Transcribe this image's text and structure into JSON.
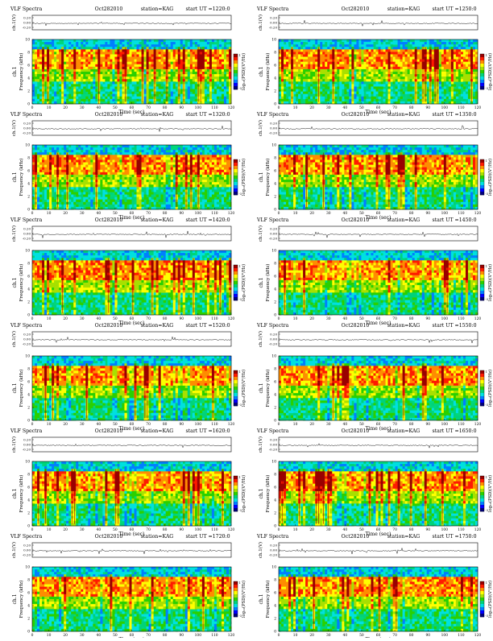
{
  "chart_data": [
    {
      "type": "heatmap",
      "title": "VLF Spectra",
      "date": "Oct282010",
      "station": "station=KAG",
      "start": "start  UT  =1220:0",
      "top_ylabel": "ch.1(V)",
      "top_ticks": [
        "0.20",
        "0.00",
        "-0.20"
      ],
      "ylabel": "Frequency  (kHz)",
      "ylabel_side": "ch.1",
      "xlabel": "Time  (sec)",
      "xticks": [
        0,
        10,
        20,
        30,
        40,
        50,
        60,
        70,
        80,
        90,
        100,
        110,
        120
      ],
      "yticks": [
        0,
        2,
        4,
        6,
        8,
        10
      ],
      "xlim": [
        0,
        120
      ],
      "ylim": [
        0,
        10
      ],
      "colorbar_label": "log₁₀(PSD)(V²/Hz)",
      "colorbar_ticks": [
        "1",
        "-3"
      ]
    },
    {
      "type": "heatmap",
      "title": "VLF Spectra",
      "date": "Oct282010",
      "station": "station=KAG",
      "start": "start  UT  =1250:0",
      "top_ylabel": "ch.1(V)",
      "top_ticks": [
        "0.20",
        "0.00",
        "-0.20"
      ],
      "ylabel": "Frequency  (kHz)",
      "ylabel_side": "ch.1",
      "xlabel": "Time  (sec)",
      "xticks": [
        0,
        10,
        20,
        30,
        40,
        50,
        60,
        70,
        80,
        90,
        100,
        110,
        120
      ],
      "yticks": [
        0,
        2,
        4,
        6,
        8,
        10
      ],
      "xlim": [
        0,
        120
      ],
      "ylim": [
        0,
        10
      ],
      "colorbar_label": "log₁₀(PSD)(V²/Hz)",
      "colorbar_ticks": [
        "1",
        "-3"
      ]
    },
    {
      "type": "heatmap",
      "title": "VLF Spectra",
      "date": "Oct282010",
      "station": "station=KAG",
      "start": "start  UT  =1320:0",
      "top_ylabel": "ch.1(V)",
      "top_ticks": [
        "0.20",
        "0.00",
        "-0.20"
      ],
      "ylabel": "Frequency  (kHz)",
      "ylabel_side": "ch.1",
      "xlabel": "Time  (sec)",
      "xticks": [
        0,
        10,
        20,
        30,
        40,
        50,
        60,
        70,
        80,
        90,
        100,
        110,
        120
      ],
      "yticks": [
        0,
        2,
        4,
        6,
        8,
        10
      ],
      "xlim": [
        0,
        120
      ],
      "ylim": [
        0,
        10
      ],
      "colorbar_label": "log₁₀(PSD)(V²/Hz)",
      "colorbar_ticks": [
        "1",
        "-3"
      ]
    },
    {
      "type": "heatmap",
      "title": "VLF Spectra",
      "date": "Oct282010",
      "station": "station=KAG",
      "start": "start  UT  =1350:0",
      "top_ylabel": "ch.1(V)",
      "top_ticks": [
        "0.20",
        "0.00",
        "-0.20"
      ],
      "ylabel": "Frequency  (kHz)",
      "ylabel_side": "ch.1",
      "xlabel": "Time  (sec)",
      "xticks": [
        0,
        10,
        20,
        30,
        40,
        50,
        60,
        70,
        80,
        90,
        100,
        110,
        120
      ],
      "yticks": [
        0,
        2,
        4,
        6,
        8,
        10
      ],
      "xlim": [
        0,
        120
      ],
      "ylim": [
        0,
        10
      ],
      "colorbar_label": "log₁₀(PSD)(V²/Hz)",
      "colorbar_ticks": [
        "1",
        "-3"
      ]
    },
    {
      "type": "heatmap",
      "title": "VLF Spectra",
      "date": "Oct282010",
      "station": "station=KAG",
      "start": "start  UT  =1420:0",
      "top_ylabel": "ch.1(V)",
      "top_ticks": [
        "0.20",
        "0.00",
        "-0.20"
      ],
      "ylabel": "Frequency  (kHz)",
      "ylabel_side": "ch.1",
      "xlabel": "Time  (sec)",
      "xticks": [
        0,
        10,
        20,
        30,
        40,
        50,
        60,
        70,
        80,
        90,
        100,
        110,
        120
      ],
      "yticks": [
        0,
        2,
        4,
        6,
        8,
        10
      ],
      "xlim": [
        0,
        120
      ],
      "ylim": [
        0,
        10
      ],
      "colorbar_label": "log₁₀(PSD)(V²/Hz)",
      "colorbar_ticks": [
        "1",
        "-3"
      ]
    },
    {
      "type": "heatmap",
      "title": "VLF Spectra",
      "date": "Oct282010",
      "station": "station=KAG",
      "start": "start  UT  =1450:0",
      "top_ylabel": "ch.1(V)",
      "top_ticks": [
        "0.20",
        "0.00",
        "-0.20"
      ],
      "ylabel": "Frequency  (kHz)",
      "ylabel_side": "ch.1",
      "xlabel": "Time  (sec)",
      "xticks": [
        0,
        10,
        20,
        30,
        40,
        50,
        60,
        70,
        80,
        90,
        100,
        110,
        120
      ],
      "yticks": [
        0,
        2,
        4,
        6,
        8,
        10
      ],
      "xlim": [
        0,
        120
      ],
      "ylim": [
        0,
        10
      ],
      "colorbar_label": "log₁₀(PSD)(V²/Hz)",
      "colorbar_ticks": [
        "1",
        "-3"
      ]
    },
    {
      "type": "heatmap",
      "title": "VLF Spectra",
      "date": "Oct282010",
      "station": "station=KAG",
      "start": "start  UT  =1520:0",
      "top_ylabel": "ch.1(V)",
      "top_ticks": [
        "0.20",
        "0.00",
        "-0.20"
      ],
      "ylabel": "Frequency  (kHz)",
      "ylabel_side": "ch.1",
      "xlabel": "Time  (sec)",
      "xticks": [
        0,
        10,
        20,
        30,
        40,
        50,
        60,
        70,
        80,
        90,
        100,
        110,
        120
      ],
      "yticks": [
        0,
        2,
        4,
        6,
        8,
        10
      ],
      "xlim": [
        0,
        120
      ],
      "ylim": [
        0,
        10
      ],
      "colorbar_label": "log₁₀(PSD)(V²/Hz)",
      "colorbar_ticks": [
        "1",
        "-3"
      ]
    },
    {
      "type": "heatmap",
      "title": "VLF Spectra",
      "date": "Oct282010",
      "station": "station=KAG",
      "start": "start  UT  =1550:0",
      "top_ylabel": "ch.1(V)",
      "top_ticks": [
        "0.20",
        "0.00",
        "-0.20"
      ],
      "ylabel": "Frequency  (kHz)",
      "ylabel_side": "ch.1",
      "xlabel": "Time  (sec)",
      "xticks": [
        0,
        10,
        20,
        30,
        40,
        50,
        60,
        70,
        80,
        90,
        100,
        110,
        120
      ],
      "yticks": [
        0,
        2,
        4,
        6,
        8,
        10
      ],
      "xlim": [
        0,
        120
      ],
      "ylim": [
        0,
        10
      ],
      "colorbar_label": "log₁₀(PSD)(V²/Hz)",
      "colorbar_ticks": [
        "1",
        "-3"
      ]
    },
    {
      "type": "heatmap",
      "title": "VLF Spectra",
      "date": "Oct282010",
      "station": "station=KAG",
      "start": "start  UT  =1620:0",
      "top_ylabel": "ch.1(V)",
      "top_ticks": [
        "0.20",
        "0.00",
        "-0.20"
      ],
      "ylabel": "Frequency  (kHz)",
      "ylabel_side": "ch.1",
      "xlabel": "Time  (sec)",
      "xticks": [
        0,
        10,
        20,
        30,
        40,
        50,
        60,
        70,
        80,
        90,
        100,
        110,
        120
      ],
      "yticks": [
        0,
        2,
        4,
        6,
        8,
        10
      ],
      "xlim": [
        0,
        120
      ],
      "ylim": [
        0,
        10
      ],
      "colorbar_label": "log₁₀(PSD)(V²/Hz)",
      "colorbar_ticks": [
        "1",
        "-3"
      ]
    },
    {
      "type": "heatmap",
      "title": "VLF Spectra",
      "date": "Oct282010",
      "station": "station=KAG",
      "start": "start  UT  =1650:0",
      "top_ylabel": "ch.1(V)",
      "top_ticks": [
        "0.20",
        "0.00",
        "-0.20"
      ],
      "ylabel": "Frequency  (kHz)",
      "ylabel_side": "ch.1",
      "xlabel": "Time  (sec)",
      "xticks": [
        0,
        10,
        20,
        30,
        40,
        50,
        60,
        70,
        80,
        90,
        100,
        110,
        120
      ],
      "yticks": [
        0,
        2,
        4,
        6,
        8,
        10
      ],
      "xlim": [
        0,
        120
      ],
      "ylim": [
        0,
        10
      ],
      "colorbar_label": "log₁₀(PSD)(V²/Hz)",
      "colorbar_ticks": [
        "1",
        "-3"
      ]
    },
    {
      "type": "heatmap",
      "title": "VLF Spectra",
      "date": "Oct282010",
      "station": "station=KAG",
      "start": "start  UT  =1720:0",
      "top_ylabel": "ch.1(V)",
      "top_ticks": [
        "0.20",
        "0.00",
        "-0.20"
      ],
      "ylabel": "Frequency  (kHz)",
      "ylabel_side": "ch.1",
      "xlabel": "Time  (sec)",
      "xticks": [
        0,
        10,
        20,
        30,
        40,
        50,
        60,
        70,
        80,
        90,
        100,
        110,
        120
      ],
      "yticks": [
        0,
        2,
        4,
        6,
        8,
        10
      ],
      "xlim": [
        0,
        120
      ],
      "ylim": [
        0,
        10
      ],
      "colorbar_label": "log₁₀(PSD)(V²/Hz)",
      "colorbar_ticks": [
        "1",
        "-3"
      ]
    },
    {
      "type": "heatmap",
      "title": "VLF Spectra",
      "date": "Oct282010",
      "station": "station=KAG",
      "start": "start  UT  =1750:0",
      "top_ylabel": "ch.1(V)",
      "top_ticks": [
        "0.20",
        "0.00",
        "-0.20"
      ],
      "ylabel": "Frequency  (kHz)",
      "ylabel_side": "ch.1",
      "xlabel": "Time  (sec)",
      "xticks": [
        0,
        10,
        20,
        30,
        40,
        50,
        60,
        70,
        80,
        90,
        100,
        110,
        120
      ],
      "yticks": [
        0,
        2,
        4,
        6,
        8,
        10
      ],
      "xlim": [
        0,
        120
      ],
      "ylim": [
        0,
        10
      ],
      "colorbar_label": "log₁₀(PSD)(V²/Hz)",
      "colorbar_ticks": [
        "1",
        "-3"
      ]
    }
  ],
  "colormap": [
    "#00007f",
    "#0000ff",
    "#007fff",
    "#00e0e0",
    "#00d27a",
    "#2ad000",
    "#a8e000",
    "#ffff00",
    "#ff8c00",
    "#ff1a00",
    "#9a0000"
  ]
}
